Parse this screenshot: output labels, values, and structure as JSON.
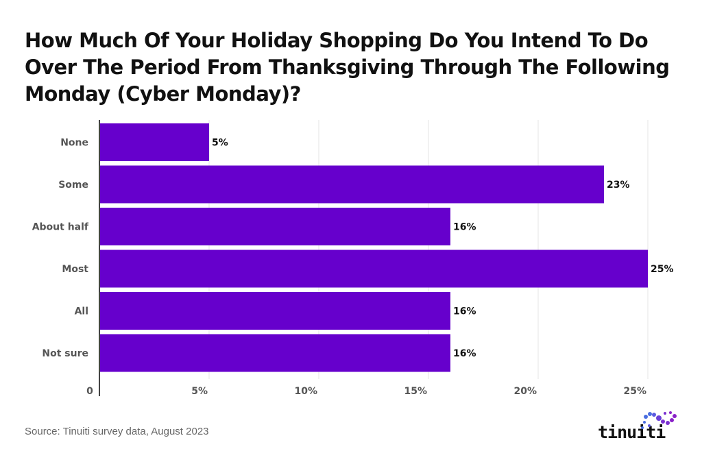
{
  "title": "How Much Of Your Holiday Shopping Do You Intend To Do Over The Period From Thanksgiving Through The Following Monday (Cyber Monday)?",
  "source": "Source: Tinuiti survey data, August 2023",
  "logo": "tinuiti",
  "colors": {
    "bar": "#6600CC",
    "grid": "#e6e6e6",
    "axis": "#444444"
  },
  "chart_data": {
    "type": "bar",
    "orientation": "horizontal",
    "title": "How Much Of Your Holiday Shopping Do You Intend To Do Over The Period From Thanksgiving Through The Following Monday (Cyber Monday)?",
    "categories": [
      "None",
      "Some",
      "About half",
      "Most",
      "All",
      "Not sure"
    ],
    "values": [
      5,
      23,
      16,
      25,
      16,
      16
    ],
    "data_labels": [
      "5%",
      "23%",
      "16%",
      "25%",
      "16%",
      "16%"
    ],
    "xlim": [
      0,
      25
    ],
    "xticks": [
      0,
      5,
      10,
      15,
      20,
      25
    ],
    "xtick_labels": [
      "0",
      "5%",
      "10%",
      "15%",
      "20%",
      "25%"
    ],
    "grid": true,
    "xlabel": "",
    "ylabel": ""
  }
}
